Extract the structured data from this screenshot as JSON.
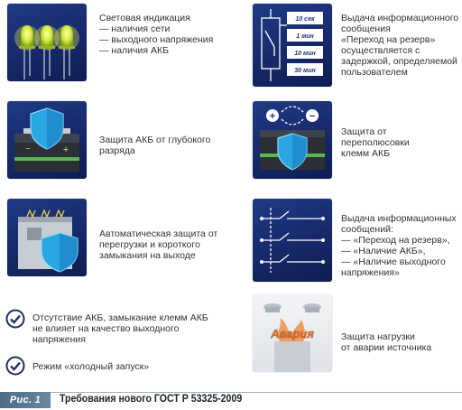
{
  "colors": {
    "card_bg": "#1b3279",
    "accent_blue": "#2aa6e0",
    "check_color": "#1d2f63",
    "led_yellow": "#e8f04a",
    "footer_badge": "#5b7893"
  },
  "left": [
    {
      "icon": "led-indicators-icon",
      "text": "Световая  индикация\n— наличия сети\n— выходного напряжения\n— наличия АКБ"
    },
    {
      "icon": "battery-shield-icon",
      "text": "Защита АКБ от глубокого\nразряда"
    },
    {
      "icon": "overload-shield-icon",
      "text": "Автоматическая защита от\nперегрузки и короткого\nзамыкания на выходе"
    }
  ],
  "right": [
    {
      "icon": "delay-relay-icon",
      "text": "Выдача информационного\nсообщения\n«Переход на резерв»\nосуществляется с\nзадержкой, определяемой\nпользователем",
      "delays": [
        "10 сек",
        "1 мин",
        "10 мин",
        "30 мин"
      ]
    },
    {
      "icon": "polarity-shield-icon",
      "text": "Защита от\nпереполюсовки\nклемм АКБ",
      "polarity": [
        "+",
        "−"
      ]
    },
    {
      "icon": "relay-contacts-icon",
      "text": "Выдача информационных\nсообщений:\n— «Переход на резерв»,\n— «Наличие АКБ»,\n— «Наличие выходного\n    напряжения»"
    },
    {
      "icon": "fire-alarm-icon",
      "text": "Защита нагрузки\nот аварии источника",
      "alarm_word": "Авария"
    }
  ],
  "checks": [
    {
      "text": "Отсутствие АКБ, замыкание клемм АКБ\nне влияет на качество выходного\nнапряжения"
    },
    {
      "text": "Режим «холодный запуск»"
    }
  ],
  "footer": {
    "badge": "Рис. 1",
    "caption": "Требования нового ГОСТ Р 53325-2009"
  }
}
